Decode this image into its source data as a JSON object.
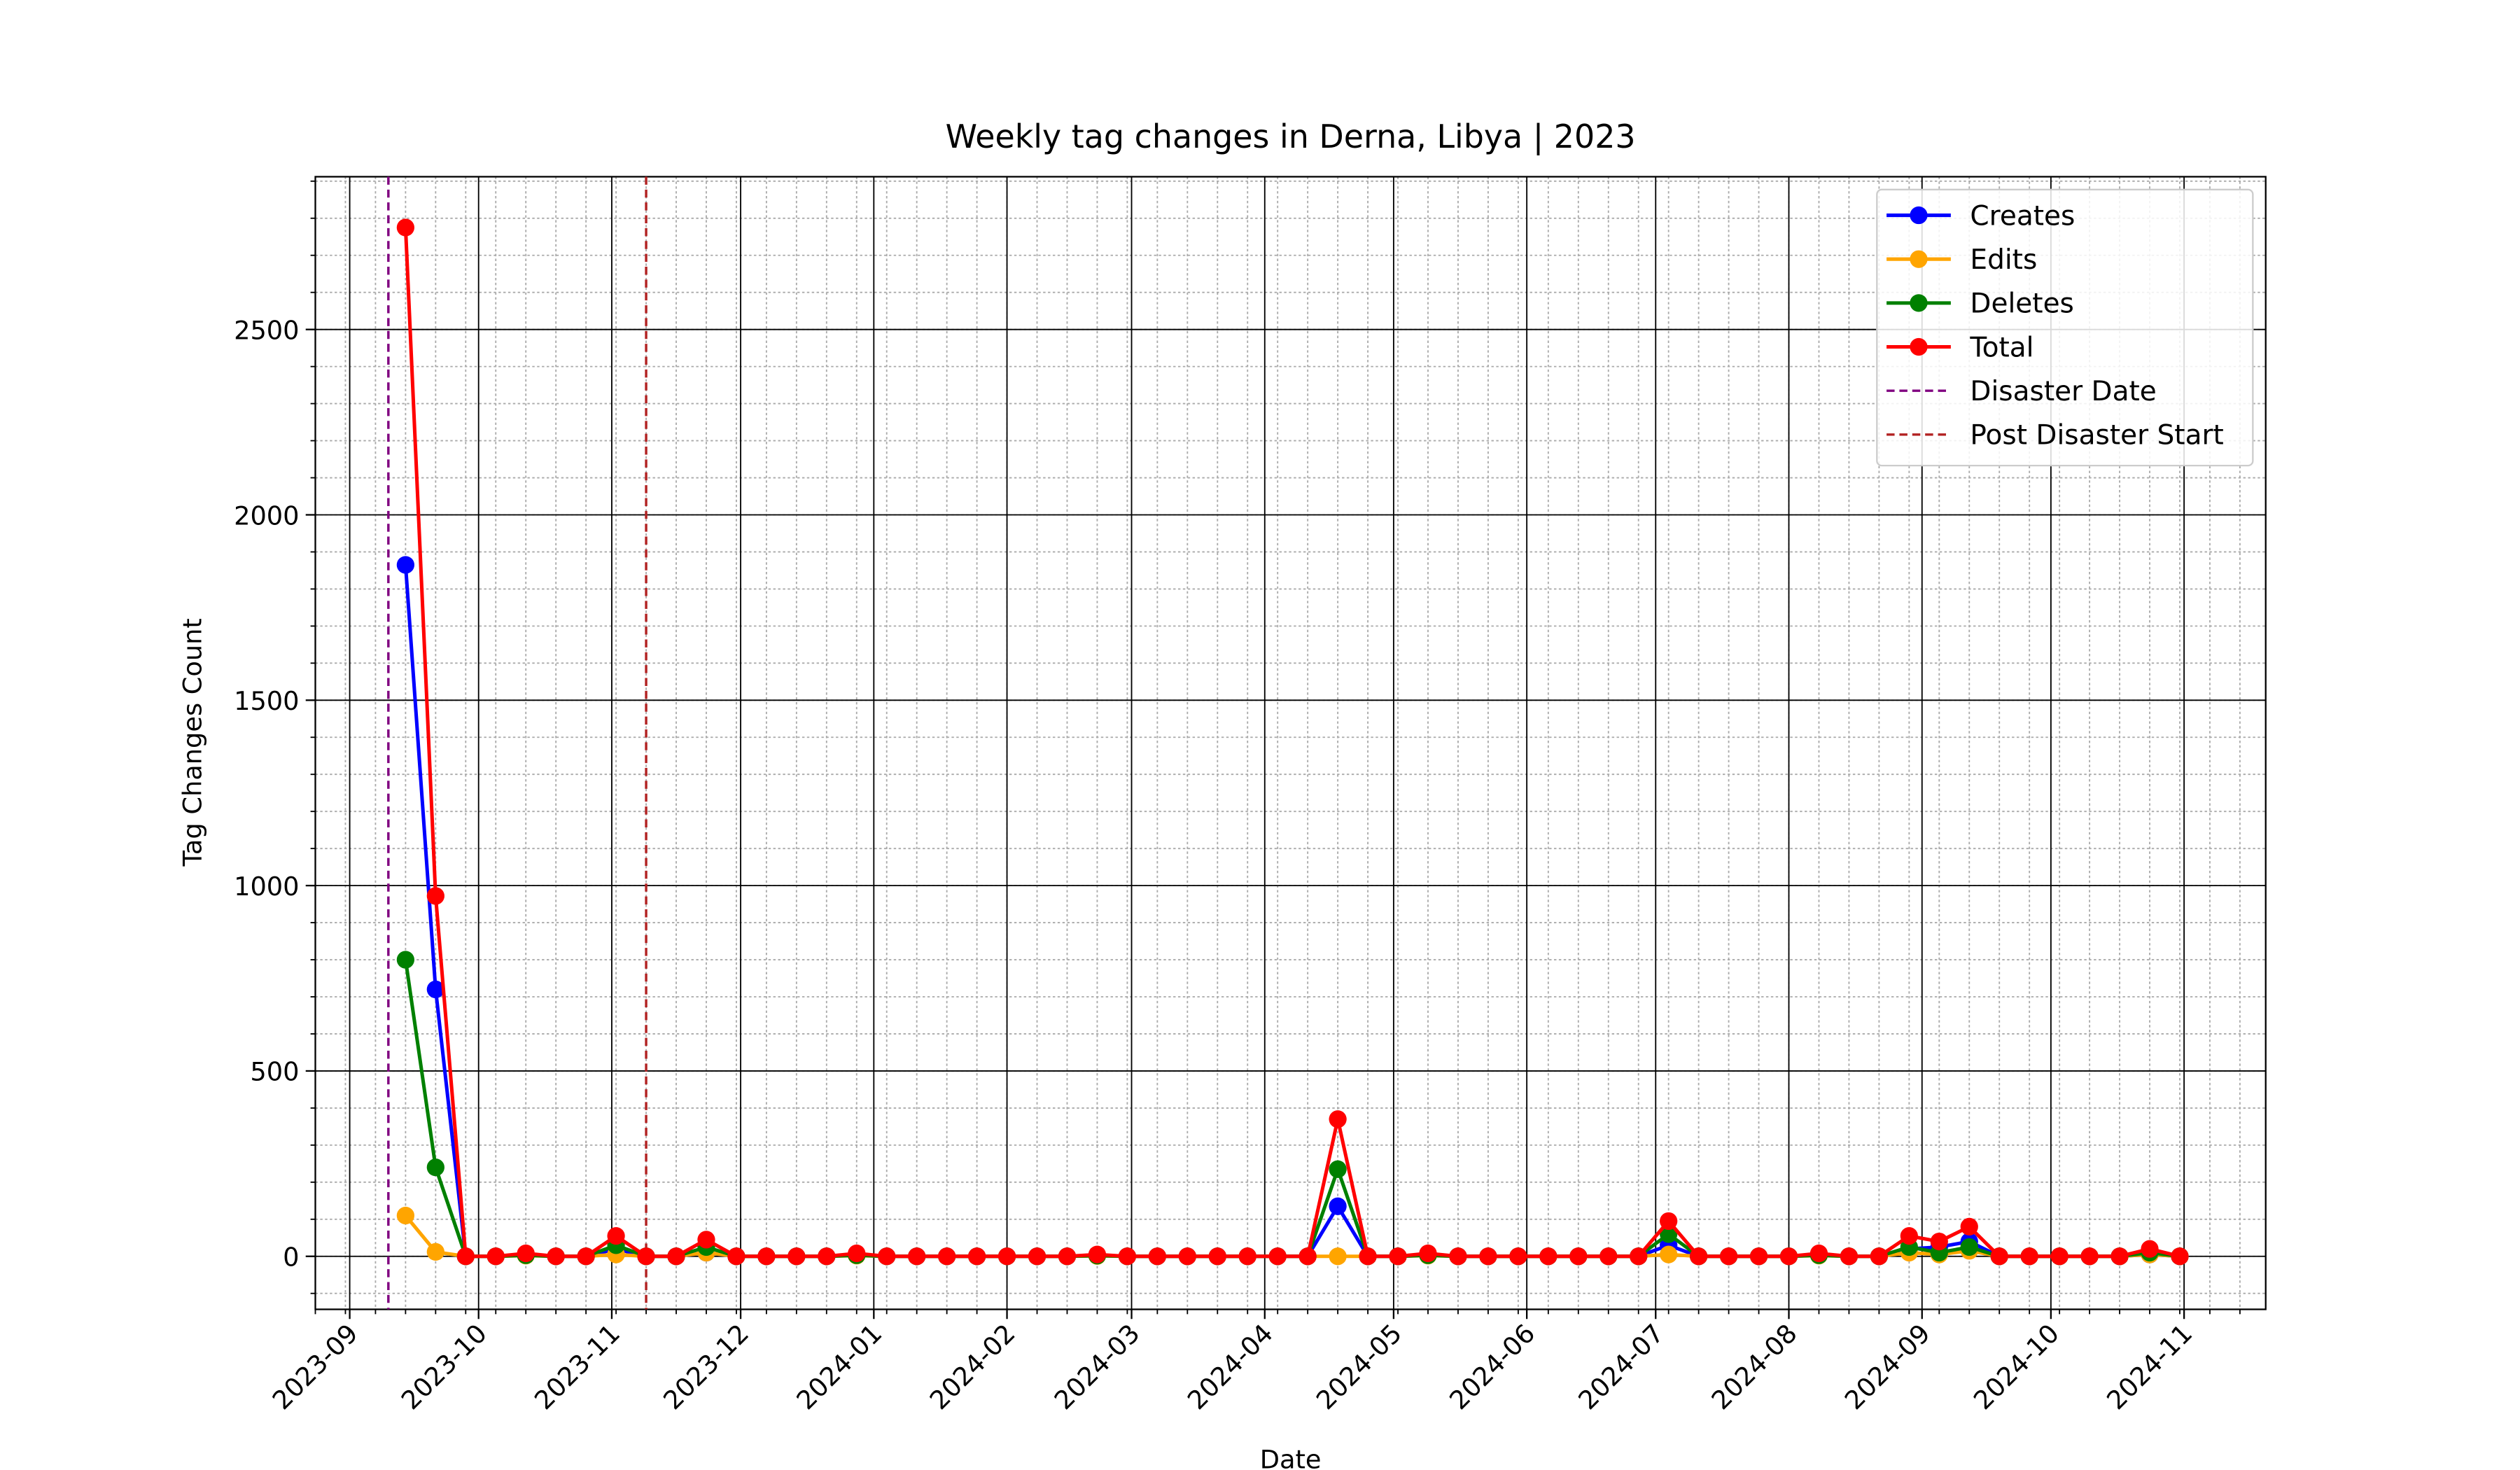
{
  "chart_data": {
    "type": "line",
    "title": "Weekly tag changes in Derna, Libya | 2023",
    "x_label": "Date",
    "y_label": "Tag Changes Count",
    "x": [
      "2023-09-14",
      "2023-09-21",
      "2023-09-28",
      "2023-10-05",
      "2023-10-12",
      "2023-10-19",
      "2023-10-26",
      "2023-11-02",
      "2023-11-09",
      "2023-11-16",
      "2023-11-23",
      "2023-11-30",
      "2023-12-07",
      "2023-12-14",
      "2023-12-21",
      "2023-12-28",
      "2024-01-04",
      "2024-01-11",
      "2024-01-18",
      "2024-01-25",
      "2024-02-01",
      "2024-02-08",
      "2024-02-15",
      "2024-02-22",
      "2024-02-29",
      "2024-03-07",
      "2024-03-14",
      "2024-03-21",
      "2024-03-28",
      "2024-04-04",
      "2024-04-11",
      "2024-04-18",
      "2024-04-25",
      "2024-05-02",
      "2024-05-09",
      "2024-05-16",
      "2024-05-23",
      "2024-05-30",
      "2024-06-06",
      "2024-06-13",
      "2024-06-20",
      "2024-06-27",
      "2024-07-04",
      "2024-07-11",
      "2024-07-18",
      "2024-07-25",
      "2024-08-01",
      "2024-08-08",
      "2024-08-15",
      "2024-08-22",
      "2024-08-29",
      "2024-09-05",
      "2024-09-12",
      "2024-09-19",
      "2024-09-26",
      "2024-10-03",
      "2024-10-10",
      "2024-10-17",
      "2024-10-24",
      "2024-10-31"
    ],
    "series": [
      {
        "name": "Creates",
        "color": "#0000ff",
        "values": [
          1865,
          720,
          0,
          0,
          3,
          0,
          0,
          20,
          0,
          0,
          10,
          0,
          0,
          0,
          0,
          3,
          0,
          0,
          0,
          0,
          0,
          0,
          0,
          2,
          0,
          0,
          0,
          0,
          0,
          0,
          0,
          135,
          0,
          0,
          3,
          0,
          0,
          0,
          0,
          0,
          0,
          0,
          30,
          0,
          0,
          0,
          0,
          3,
          0,
          0,
          20,
          25,
          40,
          0,
          0,
          0,
          0,
          0,
          5,
          0
        ]
      },
      {
        "name": "Edits",
        "color": "#ffa500",
        "values": [
          110,
          12,
          0,
          0,
          2,
          0,
          0,
          5,
          0,
          0,
          10,
          0,
          0,
          0,
          0,
          2,
          0,
          0,
          0,
          0,
          0,
          0,
          0,
          1,
          0,
          0,
          0,
          0,
          0,
          0,
          0,
          0,
          0,
          0,
          2,
          0,
          0,
          0,
          0,
          0,
          0,
          0,
          5,
          0,
          0,
          0,
          0,
          2,
          0,
          0,
          10,
          5,
          15,
          0,
          0,
          0,
          0,
          0,
          5,
          0
        ]
      },
      {
        "name": "Deletes",
        "color": "#008000",
        "values": [
          800,
          240,
          0,
          0,
          3,
          0,
          0,
          30,
          0,
          0,
          25,
          0,
          0,
          0,
          0,
          3,
          0,
          0,
          0,
          0,
          0,
          0,
          0,
          2,
          0,
          0,
          0,
          0,
          0,
          0,
          0,
          235,
          0,
          0,
          3,
          0,
          0,
          0,
          0,
          0,
          0,
          0,
          60,
          0,
          0,
          0,
          0,
          3,
          0,
          0,
          25,
          10,
          25,
          0,
          0,
          0,
          0,
          0,
          10,
          0
        ]
      },
      {
        "name": "Total",
        "color": "#ff0000",
        "values": [
          2775,
          972,
          0,
          0,
          8,
          0,
          0,
          55,
          0,
          0,
          45,
          0,
          0,
          0,
          0,
          8,
          0,
          0,
          0,
          0,
          0,
          0,
          0,
          5,
          0,
          0,
          0,
          0,
          0,
          0,
          0,
          370,
          0,
          0,
          8,
          0,
          0,
          0,
          0,
          0,
          0,
          0,
          95,
          0,
          0,
          0,
          0,
          8,
          0,
          0,
          55,
          40,
          80,
          0,
          0,
          0,
          0,
          0,
          20,
          0
        ]
      }
    ],
    "vlines": [
      {
        "name": "Disaster Date",
        "x": "2023-09-10",
        "color": "#800080"
      },
      {
        "name": "Post Disaster Start",
        "x": "2023-11-09",
        "color": "#b22222"
      }
    ],
    "xlim": [
      "2023-08-24",
      "2024-11-20"
    ],
    "xticks": [
      "2023-09",
      "2023-10",
      "2023-11",
      "2023-12",
      "2024-01",
      "2024-02",
      "2024-03",
      "2024-04",
      "2024-05",
      "2024-06",
      "2024-07",
      "2024-08",
      "2024-09",
      "2024-10",
      "2024-11"
    ],
    "ylim": [
      -143,
      2912
    ],
    "yticks": [
      0,
      500,
      1000,
      1500,
      2000,
      2500
    ],
    "grid": true,
    "minor_grid": true,
    "legend": "upper right"
  }
}
